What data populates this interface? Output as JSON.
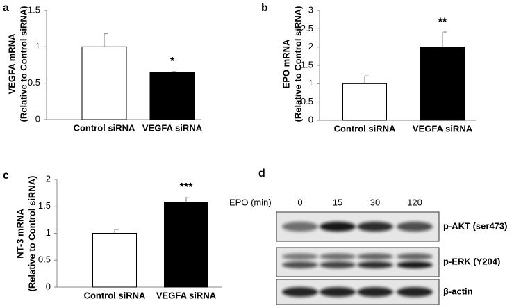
{
  "chart_data": [
    {
      "type": "bar",
      "label": "a",
      "ylabel": [
        "VEGFA mRNA",
        "(Relative to Control siRNA)"
      ],
      "categories": [
        "Control siRNA",
        "VEGFA siRNA"
      ],
      "values": [
        1,
        0.65
      ],
      "errors": [
        0.18,
        0.01
      ],
      "colors": [
        "#ffffff",
        "#000000"
      ],
      "ylim": [
        0,
        1.5
      ],
      "yticks": [
        0,
        0.5,
        1,
        1.5
      ],
      "annotations": [
        {
          "text": "*",
          "index": 1
        }
      ]
    },
    {
      "type": "bar",
      "label": "b",
      "ylabel": [
        "EPO mRNA",
        "(Relative to Control siRNA)"
      ],
      "categories": [
        "Control siRNA",
        "VEGFA siRNA"
      ],
      "values": [
        1,
        2
      ],
      "errors": [
        0.21,
        0.41
      ],
      "colors": [
        "#ffffff",
        "#000000"
      ],
      "ylim": [
        0,
        3
      ],
      "yticks": [
        0,
        0.5,
        1,
        1.5,
        2,
        2.5,
        3
      ],
      "annotations": [
        {
          "text": "**",
          "index": 1
        }
      ]
    },
    {
      "type": "bar",
      "label": "c",
      "ylabel": [
        "NT-3 mRNA",
        "(Relative to Control siRNA)"
      ],
      "categories": [
        "Control siRNA",
        "VEGFA siRNA"
      ],
      "values": [
        1,
        1.58
      ],
      "errors": [
        0.07,
        0.09
      ],
      "colors": [
        "#ffffff",
        "#000000"
      ],
      "ylim": [
        0,
        2
      ],
      "yticks": [
        0,
        0.5,
        1,
        1.5,
        2
      ],
      "annotations": [
        {
          "text": "***",
          "index": 1
        }
      ]
    }
  ],
  "blot": {
    "label": "d",
    "condition": "EPO (min)",
    "lanes": [
      "0",
      "15",
      "30",
      "120"
    ],
    "rows": [
      "p-AKT (ser473)",
      "p-ERK (Y204)",
      "β-actin"
    ]
  }
}
